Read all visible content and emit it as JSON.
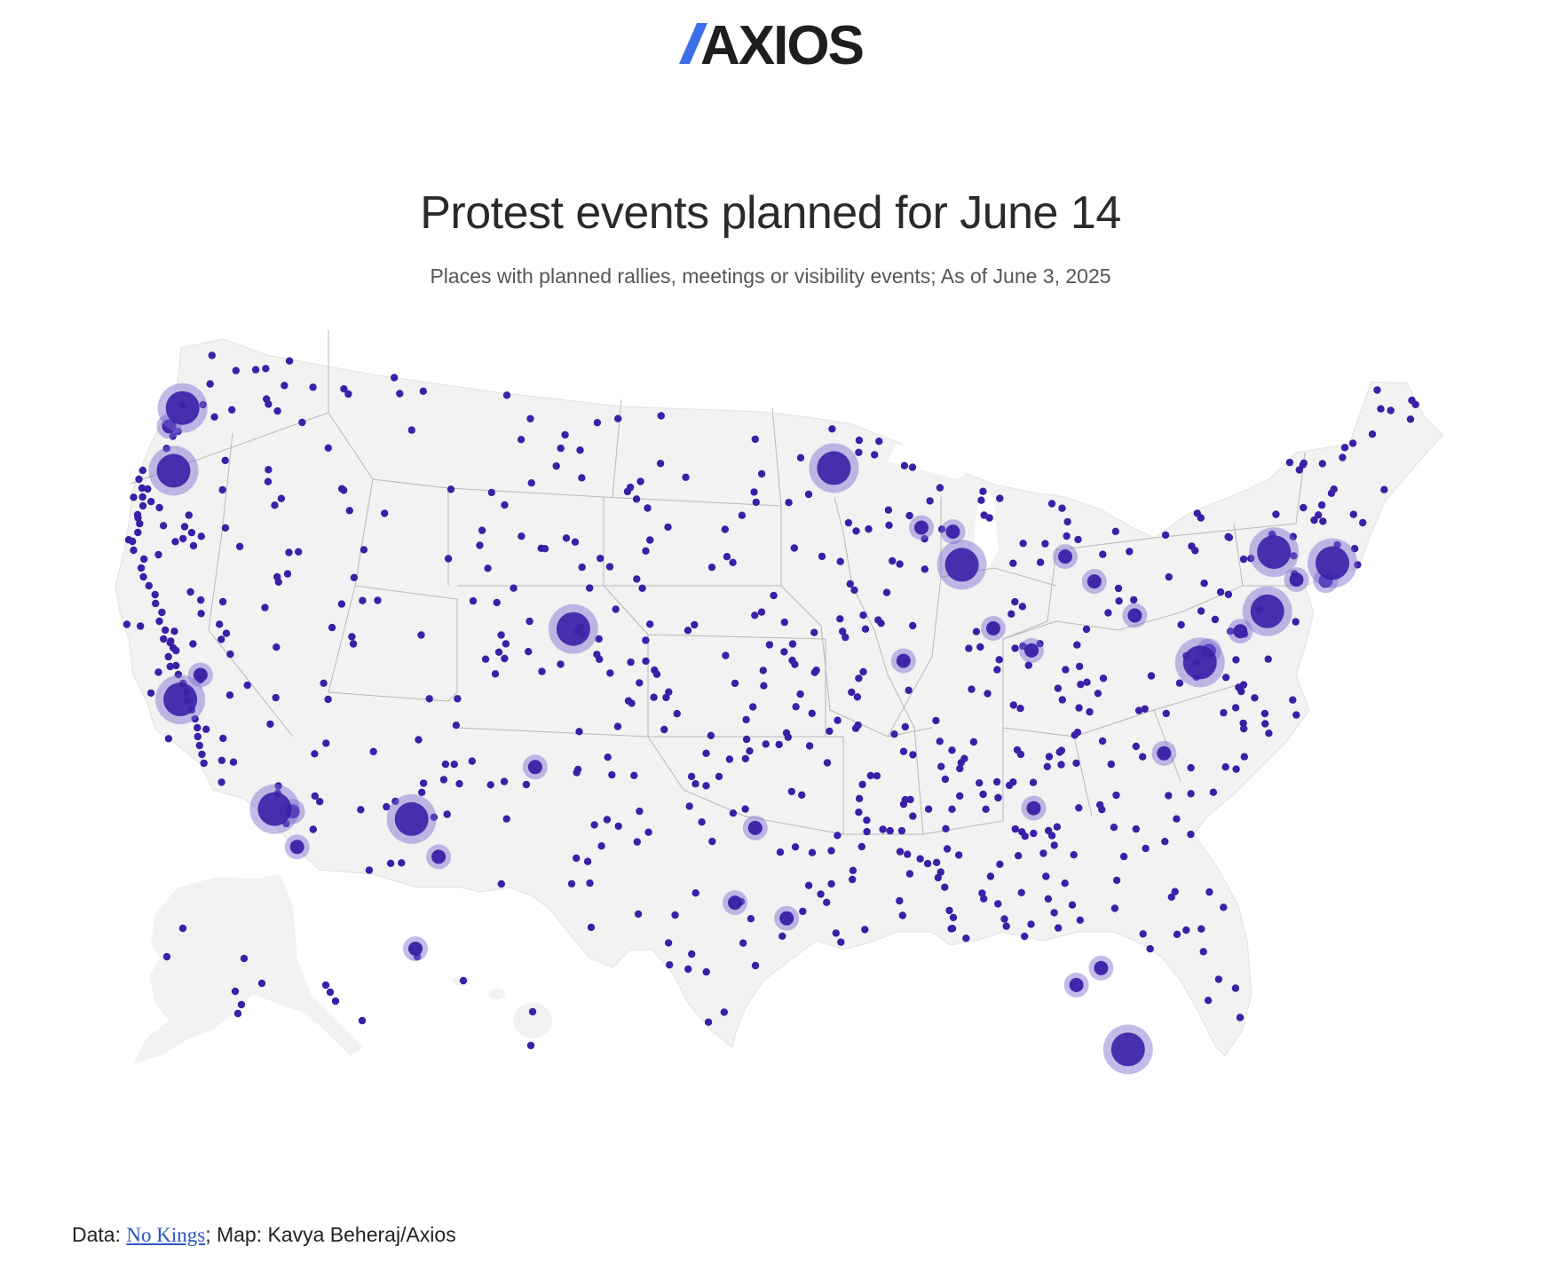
{
  "brand": {
    "name": "AXIOS",
    "accent_color": "#3b6ee8"
  },
  "title": "Protest events planned for June 14",
  "subtitle": "Places with planned rallies, meetings or visibility events; As of June 3, 2025",
  "credit": {
    "data_label": "Data: ",
    "source_link": "No Kings",
    "rest": "; Map: Kavya Beheraj/Axios"
  },
  "colors": {
    "dot": "#3b1fa6",
    "halo": "#7b6ad1",
    "land": "#f2f2f2",
    "borders": "#b8b8b8"
  },
  "map_markers": {
    "large_centers": [
      {
        "lon": -122.4,
        "lat": 37.8
      },
      {
        "lon": -118.2,
        "lat": 34.0
      },
      {
        "lon": -122.3,
        "lat": 47.6
      },
      {
        "lon": -122.7,
        "lat": 45.5
      },
      {
        "lon": -74.0,
        "lat": 40.7
      },
      {
        "lon": -71.1,
        "lat": 42.4
      },
      {
        "lon": -77.0,
        "lat": 38.9
      },
      {
        "lon": -87.6,
        "lat": 41.9
      },
      {
        "lon": -112.1,
        "lat": 33.5
      },
      {
        "lon": -93.3,
        "lat": 45.0
      },
      {
        "lon": -80.2,
        "lat": 25.8
      },
      {
        "lon": -104.9,
        "lat": 39.7
      },
      {
        "lon": -73.7,
        "lat": 42.7
      }
    ],
    "medium_centers": [
      {
        "lon": -121.5,
        "lat": 38.6
      },
      {
        "lon": -117.2,
        "lat": 32.7
      },
      {
        "lon": -117.4,
        "lat": 33.9
      },
      {
        "lon": -84.4,
        "lat": 33.8
      },
      {
        "lon": -83.0,
        "lat": 42.3
      },
      {
        "lon": -81.7,
        "lat": 41.5
      },
      {
        "lon": -75.2,
        "lat": 40.0
      },
      {
        "lon": -97.7,
        "lat": 30.3
      },
      {
        "lon": -95.4,
        "lat": 29.8
      },
      {
        "lon": -96.8,
        "lat": 32.8
      },
      {
        "lon": -90.2,
        "lat": 38.6
      },
      {
        "lon": -84.5,
        "lat": 39.1
      },
      {
        "lon": -86.2,
        "lat": 39.8
      },
      {
        "lon": -82.5,
        "lat": 27.9
      },
      {
        "lon": -81.4,
        "lat": 28.5
      },
      {
        "lon": -78.6,
        "lat": 35.8
      },
      {
        "lon": -110.9,
        "lat": 32.2
      },
      {
        "lon": -89.4,
        "lat": 43.1
      },
      {
        "lon": -122.9,
        "lat": 47.0
      },
      {
        "lon": -106.6,
        "lat": 35.1
      },
      {
        "lon": -88.0,
        "lat": 43.0
      },
      {
        "lon": -79.9,
        "lat": 40.4
      },
      {
        "lon": -76.6,
        "lat": 39.3
      },
      {
        "lon": -72.7,
        "lat": 41.8
      },
      {
        "lon": -71.4,
        "lat": 41.8
      },
      {
        "lon": -157.9,
        "lat": 21.3
      }
    ]
  }
}
